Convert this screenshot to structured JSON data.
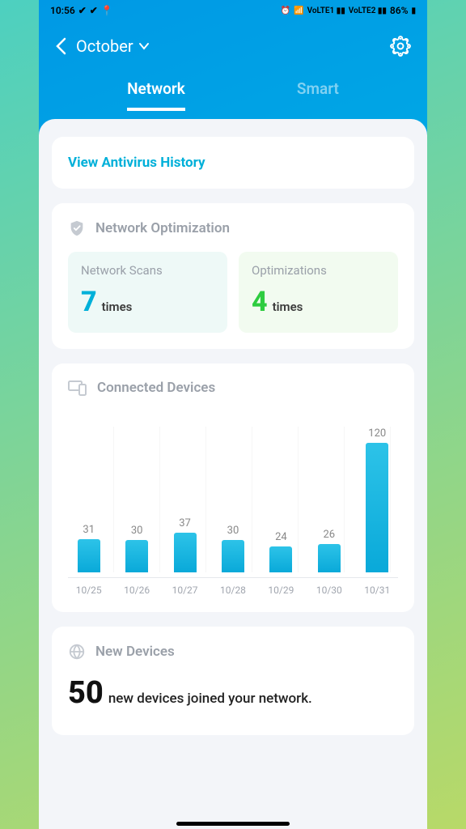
{
  "status": {
    "time": "10:56",
    "battery": "86%",
    "indicators": "⏰ 📶 📶"
  },
  "header": {
    "month": "October"
  },
  "tabs": {
    "network": "Network",
    "smart": "Smart"
  },
  "antivirus": {
    "link": "View Antivirus History"
  },
  "optimization": {
    "title": "Network Optimization",
    "scans_label": "Network Scans",
    "scans_value": "7",
    "scans_unit": "times",
    "opt_label": "Optimizations",
    "opt_value": "4",
    "opt_unit": "times"
  },
  "devices": {
    "title": "Connected Devices",
    "chart": {
      "type": "bar",
      "max": 120,
      "bar_color": "#1fb8e2",
      "grid_color": "#e8e8e8",
      "label_color": "#888888",
      "axis_color": "#a0a5ae",
      "data": [
        {
          "label": "10/25",
          "value": 31
        },
        {
          "label": "10/26",
          "value": 30
        },
        {
          "label": "10/27",
          "value": 37
        },
        {
          "label": "10/28",
          "value": 30
        },
        {
          "label": "10/29",
          "value": 24
        },
        {
          "label": "10/30",
          "value": 26
        },
        {
          "label": "10/31",
          "value": 120
        }
      ]
    }
  },
  "newdev": {
    "title": "New Devices",
    "count": "50",
    "suffix": "new devices joined your network."
  },
  "colors": {
    "header_grad_a": "#0099e5",
    "header_grad_b": "#00c8e5",
    "cyan": "#00b0d9",
    "green": "#2ecc40",
    "sheet_bg": "#f3f5f9",
    "card_bg": "#ffffff",
    "muted": "#9aa0a9"
  }
}
